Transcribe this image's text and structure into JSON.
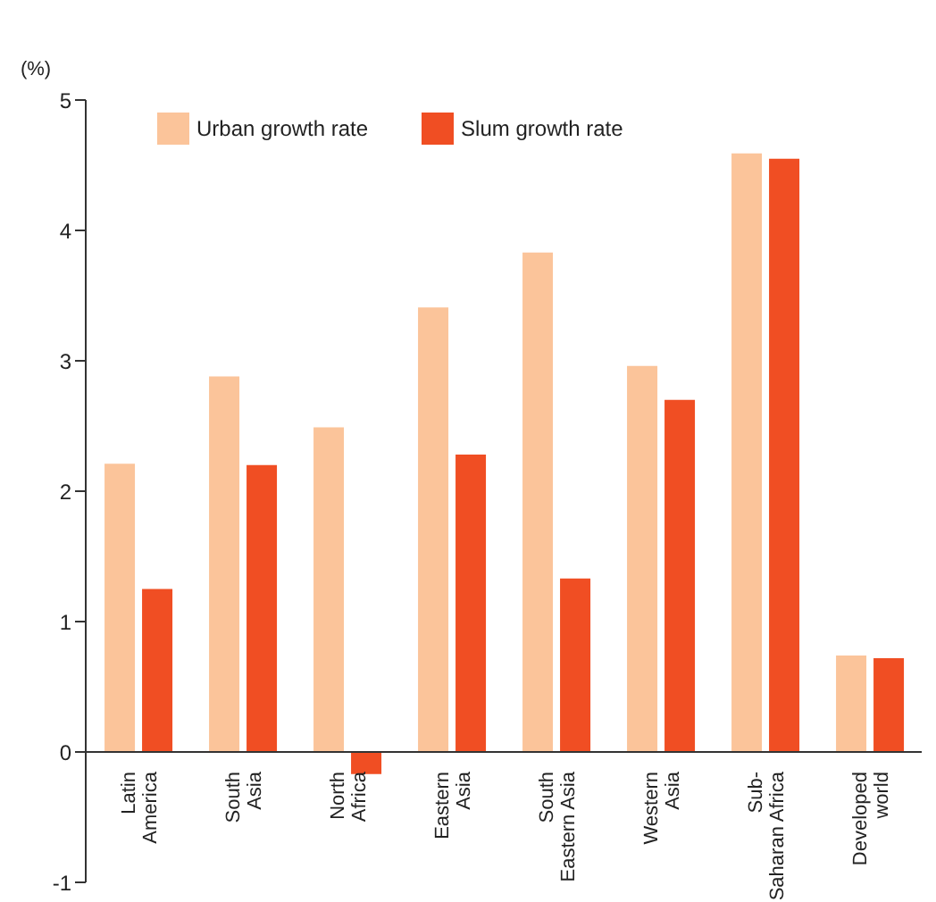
{
  "chart_data": {
    "type": "bar",
    "ylabel": "(%)",
    "categories": [
      "Latin\nAmerica",
      "South\nAsia",
      "North\nAfrica",
      "Eastern\nAsia",
      "South\nEastern Asia",
      "Western\nAsia",
      "Sub-\nSaharan Africa",
      "Developed\nworld"
    ],
    "series": [
      {
        "name": "Urban growth rate",
        "color": "#fbc49a",
        "values": [
          2.21,
          2.88,
          2.49,
          3.41,
          3.83,
          2.96,
          4.59,
          0.74
        ]
      },
      {
        "name": "Slum growth rate",
        "color": "#f04e23",
        "values": [
          1.25,
          2.2,
          -0.17,
          2.28,
          1.33,
          2.7,
          4.55,
          0.72
        ]
      }
    ],
    "ylim": [
      -1,
      5
    ],
    "yticks": [
      -1,
      0,
      1,
      2,
      3,
      4,
      5
    ],
    "legend": "top left"
  }
}
